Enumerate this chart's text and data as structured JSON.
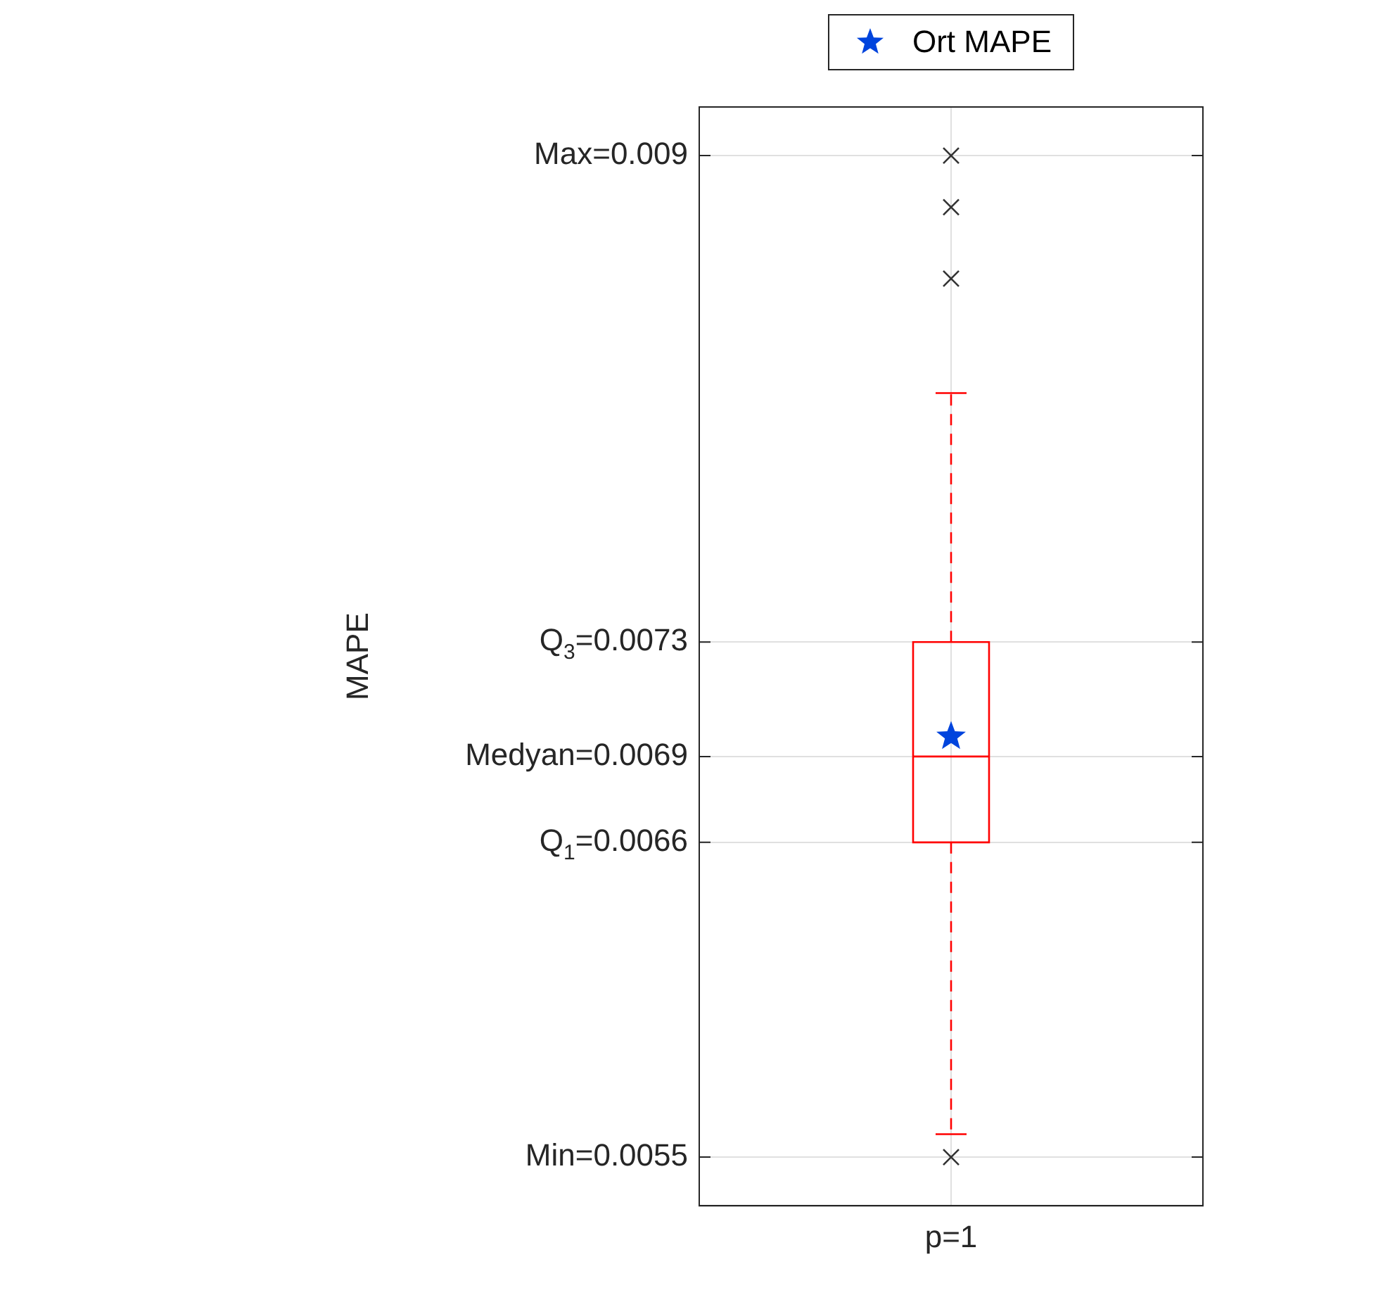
{
  "chart_data": {
    "type": "box",
    "ylabel": "MAPE",
    "categories": [
      "p=1"
    ],
    "ylim": [
      0.00533,
      0.00917
    ],
    "yticks": [
      {
        "value": 0.0055,
        "label": "Min=0.0055"
      },
      {
        "value": 0.0066,
        "label": "Q$_{1}$=0.0066"
      },
      {
        "value": 0.0069,
        "label": "Medyan=0.0069"
      },
      {
        "value": 0.0073,
        "label": "Q$_{3}$=0.0073"
      },
      {
        "value": 0.009,
        "label": "Max=0.009"
      }
    ],
    "grid": true,
    "legend": "top",
    "series": [
      {
        "color": "#ff0000",
        "line_style": "dashed",
        "boxes": [
          {
            "low": 0.00558,
            "q1": 0.0066,
            "median": 0.0069,
            "q3": 0.0073,
            "high": 0.00817,
            "outliers": [
              0.0055,
              0.00857,
              0.00882,
              0.009
            ]
          }
        ]
      },
      {
        "type": "scatter",
        "name": "Ort MAPE",
        "color": "#0044dd",
        "marker": "star",
        "x": [
          "p=1"
        ],
        "values": [
          0.00697
        ]
      }
    ]
  }
}
